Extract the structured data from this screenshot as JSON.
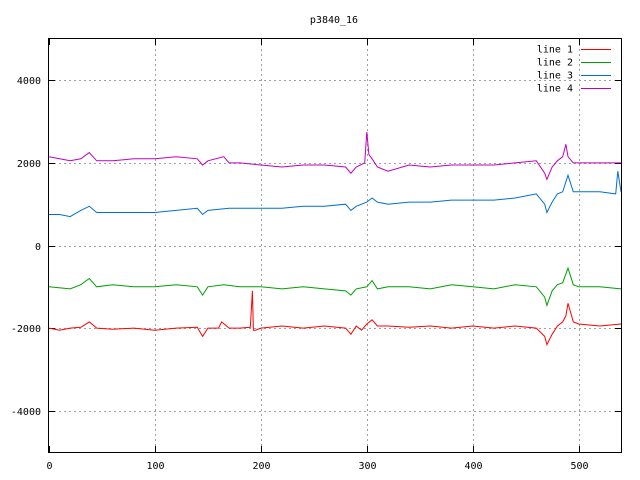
{
  "chart_data": {
    "type": "line",
    "title": "p3840_16",
    "xlabel": "",
    "ylabel": "",
    "xlim": [
      0,
      540
    ],
    "ylim": [
      -5000,
      5000
    ],
    "x_ticks": [
      0,
      100,
      200,
      300,
      400,
      500
    ],
    "y_ticks": [
      -4000,
      -2000,
      0,
      2000,
      4000
    ],
    "grid": true,
    "legend_position": "top-right",
    "series": [
      {
        "name": "line 1",
        "color": "#ff0000",
        "x": [
          0,
          10,
          20,
          30,
          38,
          45,
          60,
          80,
          100,
          120,
          140,
          145,
          150,
          160,
          163,
          170,
          180,
          190,
          192,
          193,
          195,
          200,
          220,
          240,
          260,
          280,
          285,
          290,
          295,
          300,
          305,
          310,
          320,
          340,
          360,
          380,
          400,
          420,
          440,
          460,
          468,
          470,
          475,
          480,
          485,
          488,
          490,
          495,
          500,
          520,
          540
        ],
        "y": [
          -2000,
          -2050,
          -2000,
          -1980,
          -1850,
          -2000,
          -2030,
          -2000,
          -2050,
          -2000,
          -1980,
          -2200,
          -2000,
          -2000,
          -1850,
          -2000,
          -2000,
          -1980,
          -1100,
          -2050,
          -2050,
          -2000,
          -1950,
          -2000,
          -1950,
          -2000,
          -2150,
          -1950,
          -2050,
          -1900,
          -1800,
          -1950,
          -1950,
          -1980,
          -1950,
          -2000,
          -1950,
          -2000,
          -1950,
          -2000,
          -2200,
          -2400,
          -2150,
          -1950,
          -1850,
          -1700,
          -1400,
          -1850,
          -1900,
          -1950,
          -1900
        ]
      },
      {
        "name": "line 2",
        "color": "#00a000",
        "x": [
          0,
          20,
          30,
          38,
          45,
          60,
          80,
          100,
          120,
          140,
          145,
          150,
          165,
          180,
          200,
          220,
          240,
          260,
          280,
          285,
          290,
          300,
          305,
          310,
          320,
          340,
          360,
          380,
          400,
          420,
          440,
          460,
          468,
          470,
          475,
          480,
          485,
          490,
          495,
          500,
          520,
          540
        ],
        "y": [
          -1000,
          -1050,
          -950,
          -800,
          -1000,
          -950,
          -1000,
          -1000,
          -950,
          -1000,
          -1200,
          -1000,
          -950,
          -1000,
          -1000,
          -1050,
          -1000,
          -1050,
          -1100,
          -1200,
          -1050,
          -1000,
          -850,
          -1050,
          -1000,
          -1000,
          -1050,
          -950,
          -1000,
          -1050,
          -950,
          -1000,
          -1250,
          -1450,
          -1100,
          -950,
          -900,
          -550,
          -950,
          -1000,
          -1000,
          -1050
        ]
      },
      {
        "name": "line 3",
        "color": "#0070d0",
        "x": [
          0,
          10,
          20,
          30,
          38,
          45,
          60,
          80,
          100,
          120,
          140,
          145,
          150,
          170,
          200,
          220,
          240,
          260,
          280,
          285,
          290,
          300,
          305,
          310,
          320,
          340,
          360,
          380,
          400,
          420,
          440,
          460,
          468,
          470,
          475,
          480,
          485,
          490,
          495,
          500,
          520,
          535,
          537,
          540
        ],
        "y": [
          750,
          750,
          700,
          850,
          950,
          800,
          800,
          800,
          800,
          850,
          900,
          750,
          850,
          900,
          900,
          900,
          950,
          950,
          1000,
          850,
          950,
          1050,
          1150,
          1050,
          1000,
          1050,
          1050,
          1100,
          1100,
          1100,
          1150,
          1250,
          1000,
          800,
          1050,
          1250,
          1300,
          1700,
          1300,
          1300,
          1300,
          1250,
          1800,
          1300
        ]
      },
      {
        "name": "line 4",
        "color": "#c000c0",
        "x": [
          0,
          10,
          20,
          30,
          38,
          45,
          60,
          80,
          100,
          120,
          140,
          145,
          150,
          165,
          170,
          180,
          200,
          220,
          240,
          260,
          280,
          285,
          290,
          298,
          300,
          302,
          305,
          310,
          320,
          340,
          360,
          380,
          400,
          420,
          440,
          460,
          468,
          470,
          475,
          480,
          485,
          488,
          490,
          495,
          500,
          520,
          540
        ],
        "y": [
          2150,
          2100,
          2050,
          2100,
          2250,
          2050,
          2050,
          2100,
          2100,
          2150,
          2100,
          1950,
          2050,
          2150,
          2000,
          2000,
          1950,
          1900,
          1950,
          1950,
          1900,
          1750,
          1900,
          2000,
          2750,
          2200,
          2100,
          1900,
          1800,
          1950,
          1900,
          1950,
          1950,
          1950,
          2000,
          2050,
          1750,
          1600,
          1900,
          2050,
          2150,
          2450,
          2150,
          2000,
          2000,
          2000,
          2000
        ]
      }
    ]
  }
}
